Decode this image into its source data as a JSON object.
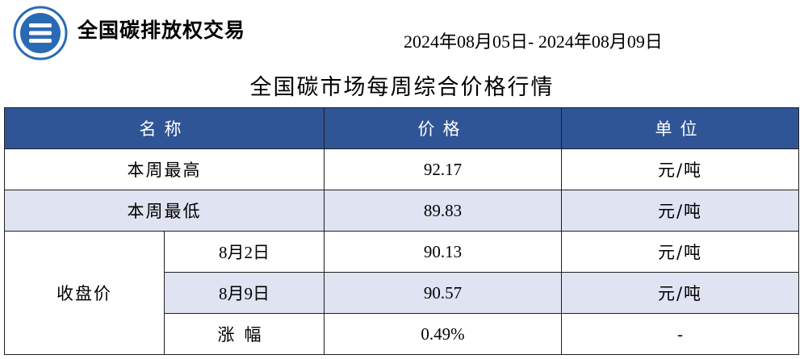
{
  "header": {
    "brand": "全国碳排放权交易",
    "logo_icon": "carbon-exchange-emblem-icon",
    "date_range": "2024年08月05日- 2024年08月09日"
  },
  "title": "全国碳市场每周综合价格行情",
  "table": {
    "columns": [
      "名称",
      "价格",
      "单位"
    ],
    "rows": [
      {
        "name": "本周最高",
        "price": "92.17",
        "unit": "元/吨"
      },
      {
        "name": "本周最低",
        "price": "89.83",
        "unit": "元/吨"
      }
    ],
    "close_group": {
      "label": "收盘价",
      "rows": [
        {
          "name": "8月2日",
          "price": "90.13",
          "unit": "元/吨"
        },
        {
          "name": "8月9日",
          "price": "90.57",
          "unit": "元/吨"
        },
        {
          "name": "涨幅",
          "price": "0.49%",
          "unit": "-"
        }
      ]
    }
  },
  "colors": {
    "header_bg": "#2f5597",
    "alt_row_bg": "#dfe3f2",
    "logo_blue": "#2a6ab5"
  }
}
